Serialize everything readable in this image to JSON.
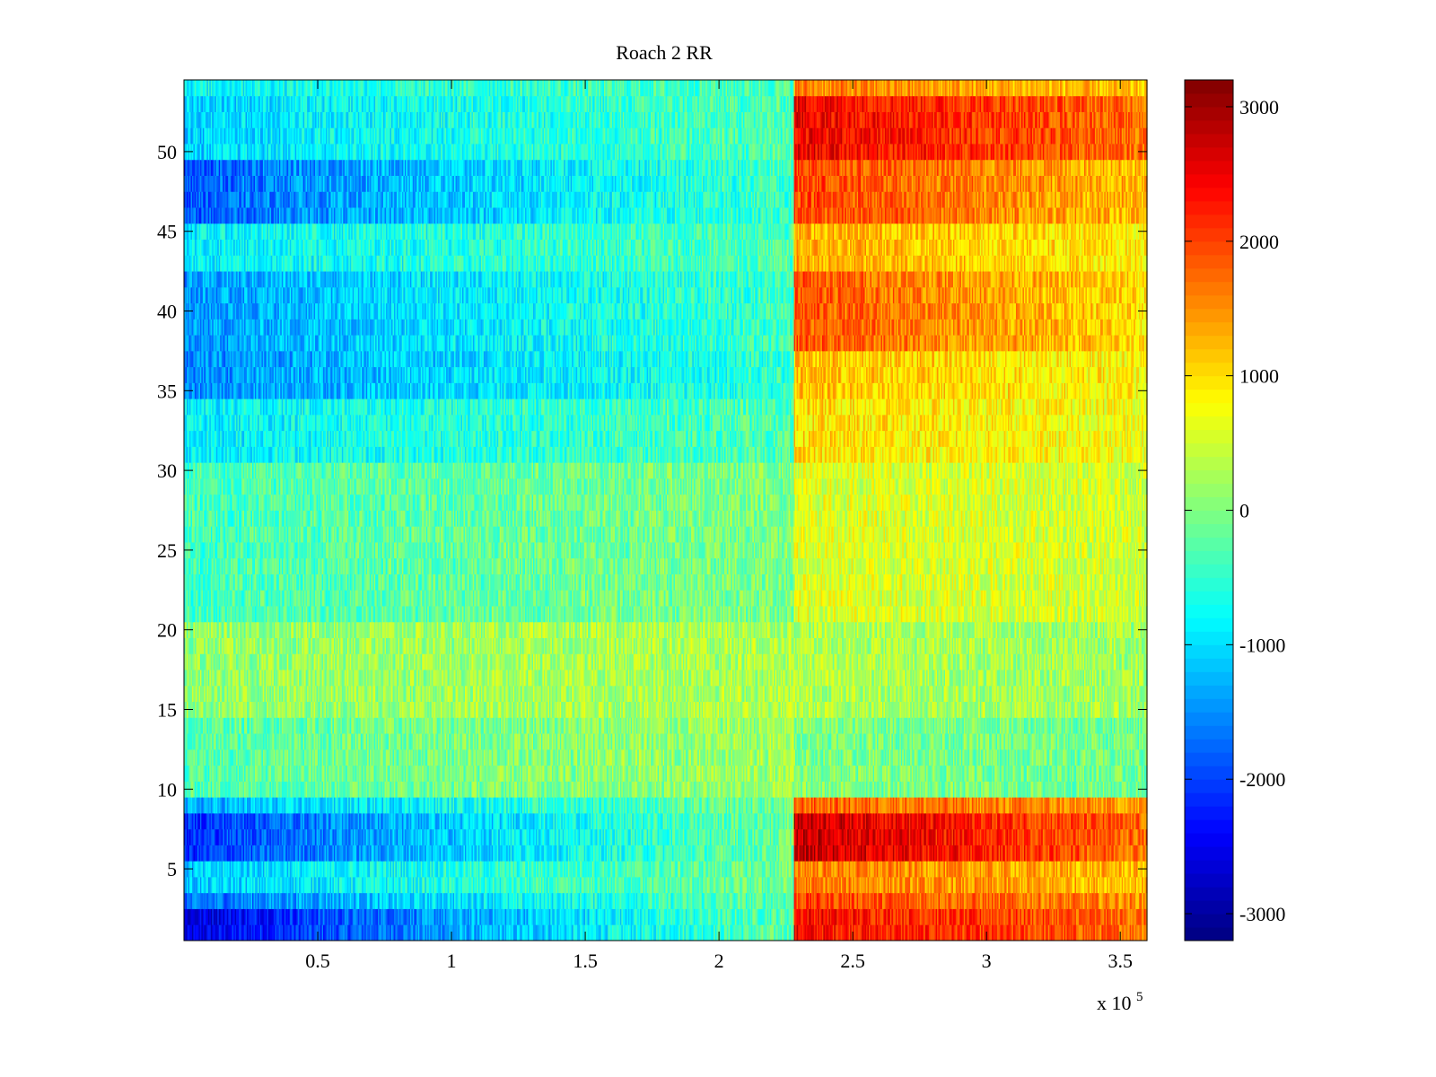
{
  "chart_data": {
    "type": "heatmap",
    "title": "Roach 2 RR",
    "xlabel": "",
    "ylabel": "",
    "x_multiplier_label": {
      "prefix": "x 10",
      "exponent": "5"
    },
    "x_range": [
      0,
      360000
    ],
    "y_range": [
      0.5,
      54.5
    ],
    "n_rows": 54,
    "x_step": 500,
    "x_ticks": [
      {
        "value": 50000,
        "label": "0.5"
      },
      {
        "value": 100000,
        "label": "1"
      },
      {
        "value": 150000,
        "label": "1.5"
      },
      {
        "value": 200000,
        "label": "2"
      },
      {
        "value": 250000,
        "label": "2.5"
      },
      {
        "value": 300000,
        "label": "3"
      },
      {
        "value": 350000,
        "label": "3.5"
      }
    ],
    "y_ticks": [
      {
        "value": 5,
        "label": "5"
      },
      {
        "value": 10,
        "label": "10"
      },
      {
        "value": 15,
        "label": "15"
      },
      {
        "value": 20,
        "label": "20"
      },
      {
        "value": 25,
        "label": "25"
      },
      {
        "value": 30,
        "label": "30"
      },
      {
        "value": 35,
        "label": "35"
      },
      {
        "value": 40,
        "label": "40"
      },
      {
        "value": 45,
        "label": "45"
      },
      {
        "value": 50,
        "label": "50"
      }
    ],
    "colorbar": {
      "colormap": "jet",
      "clim": [
        -3200,
        3200
      ],
      "ticks": [
        {
          "value": 3000,
          "label": "3000"
        },
        {
          "value": 2000,
          "label": "2000"
        },
        {
          "value": 1000,
          "label": "1000"
        },
        {
          "value": 0,
          "label": "0"
        },
        {
          "value": -1000,
          "label": "-1000"
        },
        {
          "value": -2000,
          "label": "-2000"
        },
        {
          "value": -3000,
          "label": "-3000"
        }
      ]
    },
    "transition_x": 228000,
    "row_profiles": [
      {
        "rows": [
          1,
          2
        ],
        "start": -2700,
        "mid": -200,
        "end": 2400,
        "late": 1700
      },
      {
        "rows": [
          3
        ],
        "start": -1800,
        "mid": -200,
        "end": 2000,
        "late": 1500
      },
      {
        "rows": [
          4,
          5
        ],
        "start": -1200,
        "mid": -100,
        "end": 1600,
        "late": 1200
      },
      {
        "rows": [
          6,
          7,
          8
        ],
        "start": -2200,
        "mid": -100,
        "end": 2800,
        "late": 1700
      },
      {
        "rows": [
          9
        ],
        "start": -1400,
        "mid": -100,
        "end": 1800,
        "late": 1400
      },
      {
        "rows": [
          10,
          11,
          12,
          13,
          14
        ],
        "start": -300,
        "mid": 200,
        "end": 0,
        "late": -100
      },
      {
        "rows": [
          15,
          16,
          17,
          18,
          19,
          20
        ],
        "start": 100,
        "mid": 300,
        "end": 300,
        "late": 200
      },
      {
        "rows": [
          21,
          22,
          23,
          24,
          25,
          26,
          27,
          28,
          29,
          30
        ],
        "start": -400,
        "mid": 0,
        "end": 600,
        "late": 500
      },
      {
        "rows": [
          31,
          32,
          33,
          34
        ],
        "start": -900,
        "mid": -300,
        "end": 1000,
        "late": 700
      },
      {
        "rows": [
          35,
          36,
          37
        ],
        "start": -1600,
        "mid": -500,
        "end": 1200,
        "late": 800
      },
      {
        "rows": [
          38,
          39,
          40,
          41,
          42
        ],
        "start": -1500,
        "mid": -400,
        "end": 1900,
        "late": 1000
      },
      {
        "rows": [
          43,
          44,
          45
        ],
        "start": -900,
        "mid": -300,
        "end": 1300,
        "late": 900
      },
      {
        "rows": [
          46,
          47,
          48,
          49
        ],
        "start": -1900,
        "mid": -400,
        "end": 2000,
        "late": 1200
      },
      {
        "rows": [
          50,
          51,
          52,
          53
        ],
        "start": -1100,
        "mid": -300,
        "end": 2500,
        "late": 1700
      },
      {
        "rows": [
          54
        ],
        "start": -800,
        "mid": -300,
        "end": 1600,
        "late": 1100
      }
    ]
  }
}
